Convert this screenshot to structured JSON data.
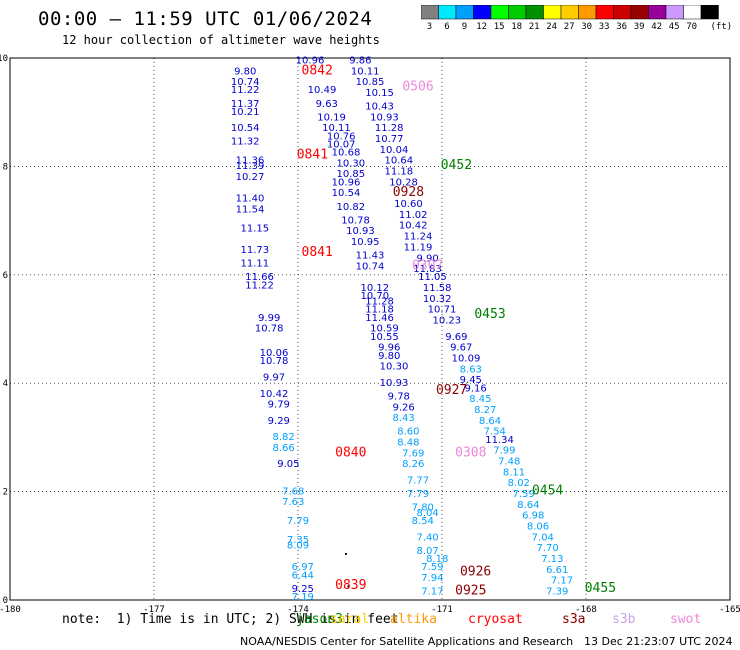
{
  "header": {
    "title": "00:00 – 11:59 UTC 01/06/2024",
    "subtitle": "12 hour collection of altimeter wave heights"
  },
  "legend": {
    "unit": "(ft)",
    "bins": [
      {
        "label": "3",
        "color": "#808080"
      },
      {
        "label": "6",
        "color": "#00e8ff"
      },
      {
        "label": "9",
        "color": "#00a0ff"
      },
      {
        "label": "12",
        "color": "#0000ff"
      },
      {
        "label": "15",
        "color": "#00ff00"
      },
      {
        "label": "18",
        "color": "#00cc00"
      },
      {
        "label": "21",
        "color": "#009000"
      },
      {
        "label": "24",
        "color": "#ffff00"
      },
      {
        "label": "27",
        "color": "#ffcc00"
      },
      {
        "label": "30",
        "color": "#ff9900"
      },
      {
        "label": "33",
        "color": "#ff0000"
      },
      {
        "label": "36",
        "color": "#cc0000"
      },
      {
        "label": "39",
        "color": "#990000"
      },
      {
        "label": "42",
        "color": "#990099"
      },
      {
        "label": "45",
        "color": "#cc99ff"
      },
      {
        "label": "70",
        "color": "#ffffff"
      },
      {
        "label": "",
        "color": "#000000"
      }
    ]
  },
  "map": {
    "lon_ticks": [
      "-180",
      "-177",
      "-174",
      "-171",
      "-168",
      "-165"
    ],
    "lat_ticks": [
      "0",
      "2",
      "4",
      "6",
      "8",
      "10"
    ],
    "lon_range": [
      -180,
      -165
    ],
    "lat_range": [
      0,
      10
    ]
  },
  "tracks": [
    {
      "time": "0842",
      "lon": -173.6,
      "lat": 9.7,
      "color": "#ff0000"
    },
    {
      "time": "0841",
      "lon": -173.7,
      "lat": 8.15,
      "color": "#ff0000"
    },
    {
      "time": "0841",
      "lon": -173.6,
      "lat": 6.35,
      "color": "#ff0000"
    },
    {
      "time": "0840",
      "lon": -172.9,
      "lat": 2.65,
      "color": "#ff0000"
    },
    {
      "time": "0839",
      "lon": -172.9,
      "lat": 0.2,
      "color": "#ff0000"
    },
    {
      "time": "0506",
      "lon": -171.5,
      "lat": 9.4,
      "color": "#ee88dd"
    },
    {
      "time": "0452",
      "lon": -170.7,
      "lat": 7.95,
      "color": "#008000"
    },
    {
      "time": "0928",
      "lon": -171.7,
      "lat": 7.45,
      "color": "#8b0000"
    },
    {
      "time": "0307",
      "lon": -171.3,
      "lat": 6.1,
      "color": "#ee88dd"
    },
    {
      "time": "0453",
      "lon": -170.0,
      "lat": 5.2,
      "color": "#008000"
    },
    {
      "time": "0927",
      "lon": -170.8,
      "lat": 3.8,
      "color": "#8b0000"
    },
    {
      "time": "0308",
      "lon": -170.4,
      "lat": 2.65,
      "color": "#ee88dd"
    },
    {
      "time": "0454",
      "lon": -168.8,
      "lat": 1.95,
      "color": "#008000"
    },
    {
      "time": "0926",
      "lon": -170.3,
      "lat": 0.45,
      "color": "#8b0000"
    },
    {
      "time": "0925",
      "lon": -170.4,
      "lat": 0.1,
      "color": "#8b0000"
    },
    {
      "time": "0455",
      "lon": -167.7,
      "lat": 0.15,
      "color": "#008000"
    }
  ],
  "readings": [
    {
      "v": "10.96",
      "lon": -173.75,
      "lat": 9.9,
      "c": "#0000cc"
    },
    {
      "v": "9.86",
      "lon": -172.7,
      "lat": 9.9,
      "c": "#0000cc"
    },
    {
      "v": "9.80",
      "lon": -175.1,
      "lat": 9.7,
      "c": "#0000cc"
    },
    {
      "v": "10.11",
      "lon": -172.6,
      "lat": 9.7,
      "c": "#0000cc"
    },
    {
      "v": "10.85",
      "lon": -172.5,
      "lat": 9.5,
      "c": "#0000cc"
    },
    {
      "v": "10.74",
      "lon": -175.1,
      "lat": 9.5,
      "c": "#0000cc"
    },
    {
      "v": "11.22",
      "lon": -175.1,
      "lat": 9.35,
      "c": "#0000cc"
    },
    {
      "v": "10.49",
      "lon": -173.5,
      "lat": 9.35,
      "c": "#0000cc"
    },
    {
      "v": "10.15",
      "lon": -172.3,
      "lat": 9.3,
      "c": "#0000cc"
    },
    {
      "v": "11.37",
      "lon": -175.1,
      "lat": 9.1,
      "c": "#0000cc"
    },
    {
      "v": "9.63",
      "lon": -173.4,
      "lat": 9.1,
      "c": "#0000cc"
    },
    {
      "v": "10.43",
      "lon": -172.3,
      "lat": 9.05,
      "c": "#0000cc"
    },
    {
      "v": "10.21",
      "lon": -175.1,
      "lat": 8.95,
      "c": "#0000cc"
    },
    {
      "v": "10.19",
      "lon": -173.3,
      "lat": 8.85,
      "c": "#0000cc"
    },
    {
      "v": "10.93",
      "lon": -172.2,
      "lat": 8.85,
      "c": "#0000cc"
    },
    {
      "v": "10.54",
      "lon": -175.1,
      "lat": 8.65,
      "c": "#0000cc"
    },
    {
      "v": "10.11",
      "lon": -173.2,
      "lat": 8.65,
      "c": "#0000cc"
    },
    {
      "v": "11.28",
      "lon": -172.1,
      "lat": 8.65,
      "c": "#0000cc"
    },
    {
      "v": "11.32",
      "lon": -175.1,
      "lat": 8.4,
      "c": "#0000cc"
    },
    {
      "v": "10.76",
      "lon": -173.1,
      "lat": 8.5,
      "c": "#0000cc"
    },
    {
      "v": "10.77",
      "lon": -172.1,
      "lat": 8.45,
      "c": "#0000cc"
    },
    {
      "v": "10.07",
      "lon": -173.1,
      "lat": 8.35,
      "c": "#0000cc"
    },
    {
      "v": "10.04",
      "lon": -172.0,
      "lat": 8.25,
      "c": "#0000cc"
    },
    {
      "v": "10.68",
      "lon": -173.0,
      "lat": 8.2,
      "c": "#0000cc"
    },
    {
      "v": "11.36",
      "lon": -175.0,
      "lat": 8.05,
      "c": "#0000cc"
    },
    {
      "v": "10.64",
      "lon": -171.9,
      "lat": 8.05,
      "c": "#0000cc"
    },
    {
      "v": "11.39",
      "lon": -175.0,
      "lat": 7.95,
      "c": "#0000cc"
    },
    {
      "v": "10.30",
      "lon": -172.9,
      "lat": 8.0,
      "c": "#0000cc"
    },
    {
      "v": "11.18",
      "lon": -171.9,
      "lat": 7.85,
      "c": "#0000cc"
    },
    {
      "v": "10.27",
      "lon": -175.0,
      "lat": 7.75,
      "c": "#0000cc"
    },
    {
      "v": "10.85",
      "lon": -172.9,
      "lat": 7.8,
      "c": "#0000cc"
    },
    {
      "v": "10.28",
      "lon": -171.8,
      "lat": 7.65,
      "c": "#0000cc"
    },
    {
      "v": "10.96",
      "lon": -173.0,
      "lat": 7.65,
      "c": "#0000cc"
    },
    {
      "v": "11.40",
      "lon": -175.0,
      "lat": 7.35,
      "c": "#0000cc"
    },
    {
      "v": "10.54",
      "lon": -173.0,
      "lat": 7.45,
      "c": "#0000cc"
    },
    {
      "v": "10.60",
      "lon": -171.7,
      "lat": 7.25,
      "c": "#0000cc"
    },
    {
      "v": "11.54",
      "lon": -175.0,
      "lat": 7.15,
      "c": "#0000cc"
    },
    {
      "v": "10.82",
      "lon": -172.9,
      "lat": 7.2,
      "c": "#0000cc"
    },
    {
      "v": "11.02",
      "lon": -171.6,
      "lat": 7.05,
      "c": "#0000cc"
    },
    {
      "v": "10.78",
      "lon": -172.8,
      "lat": 6.95,
      "c": "#0000cc"
    },
    {
      "v": "10.42",
      "lon": -171.6,
      "lat": 6.85,
      "c": "#0000cc"
    },
    {
      "v": "11.15",
      "lon": -174.9,
      "lat": 6.8,
      "c": "#0000cc"
    },
    {
      "v": "10.93",
      "lon": -172.7,
      "lat": 6.75,
      "c": "#0000cc"
    },
    {
      "v": "11.24",
      "lon": -171.5,
      "lat": 6.65,
      "c": "#0000cc"
    },
    {
      "v": "10.95",
      "lon": -172.6,
      "lat": 6.55,
      "c": "#0000cc"
    },
    {
      "v": "11.19",
      "lon": -171.5,
      "lat": 6.45,
      "c": "#0000cc"
    },
    {
      "v": "11.73",
      "lon": -174.9,
      "lat": 6.4,
      "c": "#0000cc"
    },
    {
      "v": "11.43",
      "lon": -172.5,
      "lat": 6.3,
      "c": "#0000cc"
    },
    {
      "v": "9.90",
      "lon": -171.3,
      "lat": 6.25,
      "c": "#0000cc"
    },
    {
      "v": "11.11",
      "lon": -174.9,
      "lat": 6.15,
      "c": "#0000cc"
    },
    {
      "v": "10.74",
      "lon": -172.5,
      "lat": 6.1,
      "c": "#0000cc"
    },
    {
      "v": "11.83",
      "lon": -171.3,
      "lat": 6.05,
      "c": "#0000cc"
    },
    {
      "v": "11.66",
      "lon": -174.8,
      "lat": 5.9,
      "c": "#0000cc"
    },
    {
      "v": "11.05",
      "lon": -171.2,
      "lat": 5.9,
      "c": "#0000cc"
    },
    {
      "v": "11.22",
      "lon": -174.8,
      "lat": 5.75,
      "c": "#0000cc"
    },
    {
      "v": "10.12",
      "lon": -172.4,
      "lat": 5.7,
      "c": "#0000cc"
    },
    {
      "v": "11.58",
      "lon": -171.1,
      "lat": 5.7,
      "c": "#0000cc"
    },
    {
      "v": "10.70",
      "lon": -172.4,
      "lat": 5.55,
      "c": "#0000cc"
    },
    {
      "v": "10.32",
      "lon": -171.1,
      "lat": 5.5,
      "c": "#0000cc"
    },
    {
      "v": "11.28",
      "lon": -172.3,
      "lat": 5.45,
      "c": "#0000cc"
    },
    {
      "v": "11.18",
      "lon": -172.3,
      "lat": 5.3,
      "c": "#0000cc"
    },
    {
      "v": "10.71",
      "lon": -171.0,
      "lat": 5.3,
      "c": "#0000cc"
    },
    {
      "v": "9.99",
      "lon": -174.6,
      "lat": 5.15,
      "c": "#0000cc"
    },
    {
      "v": "11.46",
      "lon": -172.3,
      "lat": 5.15,
      "c": "#0000cc"
    },
    {
      "v": "10.23",
      "lon": -170.9,
      "lat": 5.1,
      "c": "#0000cc"
    },
    {
      "v": "10.78",
      "lon": -174.6,
      "lat": 4.95,
      "c": "#0000cc"
    },
    {
      "v": "10.59",
      "lon": -172.2,
      "lat": 4.95,
      "c": "#0000cc"
    },
    {
      "v": "10.55",
      "lon": -172.2,
      "lat": 4.8,
      "c": "#0000cc"
    },
    {
      "v": "9.69",
      "lon": -170.7,
      "lat": 4.8,
      "c": "#0000cc"
    },
    {
      "v": "9.96",
      "lon": -172.1,
      "lat": 4.6,
      "c": "#0000cc"
    },
    {
      "v": "9.67",
      "lon": -170.6,
      "lat": 4.6,
      "c": "#0000cc"
    },
    {
      "v": "10.09",
      "lon": -170.5,
      "lat": 4.4,
      "c": "#0000cc"
    },
    {
      "v": "10.06",
      "lon": -174.5,
      "lat": 4.5,
      "c": "#0000cc"
    },
    {
      "v": "9.80",
      "lon": -172.1,
      "lat": 4.45,
      "c": "#0000cc"
    },
    {
      "v": "10.78",
      "lon": -174.5,
      "lat": 4.35,
      "c": "#0000cc"
    },
    {
      "v": "10.30",
      "lon": -172.0,
      "lat": 4.25,
      "c": "#0000cc"
    },
    {
      "v": "8.63",
      "lon": -170.4,
      "lat": 4.2,
      "c": "#00a0ff"
    },
    {
      "v": "9.97",
      "lon": -174.5,
      "lat": 4.05,
      "c": "#0000cc"
    },
    {
      "v": "9.45",
      "lon": -170.4,
      "lat": 4.0,
      "c": "#0000cc"
    },
    {
      "v": "10.93",
      "lon": -172.0,
      "lat": 3.95,
      "c": "#0000cc"
    },
    {
      "v": "9.16",
      "lon": -170.3,
      "lat": 3.85,
      "c": "#0000cc"
    },
    {
      "v": "10.42",
      "lon": -174.5,
      "lat": 3.75,
      "c": "#0000cc"
    },
    {
      "v": "9.78",
      "lon": -171.9,
      "lat": 3.7,
      "c": "#0000cc"
    },
    {
      "v": "8.45",
      "lon": -170.2,
      "lat": 3.65,
      "c": "#00a0ff"
    },
    {
      "v": "9.79",
      "lon": -174.4,
      "lat": 3.55,
      "c": "#0000cc"
    },
    {
      "v": "9.26",
      "lon": -171.8,
      "lat": 3.5,
      "c": "#0000cc"
    },
    {
      "v": "8.27",
      "lon": -170.1,
      "lat": 3.45,
      "c": "#00a0ff"
    },
    {
      "v": "9.29",
      "lon": -174.4,
      "lat": 3.25,
      "c": "#0000cc"
    },
    {
      "v": "8.43",
      "lon": -171.8,
      "lat": 3.3,
      "c": "#00a0ff"
    },
    {
      "v": "8.64",
      "lon": -170.0,
      "lat": 3.25,
      "c": "#00a0ff"
    },
    {
      "v": "8.60",
      "lon": -171.7,
      "lat": 3.05,
      "c": "#00a0ff"
    },
    {
      "v": "7.54",
      "lon": -169.9,
      "lat": 3.05,
      "c": "#00a0ff"
    },
    {
      "v": "8.82",
      "lon": -174.3,
      "lat": 2.95,
      "c": "#00a0ff"
    },
    {
      "v": "11.34",
      "lon": -169.8,
      "lat": 2.9,
      "c": "#0000cc"
    },
    {
      "v": "8.66",
      "lon": -174.3,
      "lat": 2.75,
      "c": "#00a0ff"
    },
    {
      "v": "8.48",
      "lon": -171.7,
      "lat": 2.85,
      "c": "#00a0ff"
    },
    {
      "v": "7.99",
      "lon": -169.7,
      "lat": 2.7,
      "c": "#00a0ff"
    },
    {
      "v": "7.69",
      "lon": -171.6,
      "lat": 2.65,
      "c": "#00a0ff"
    },
    {
      "v": "9.05",
      "lon": -174.2,
      "lat": 2.45,
      "c": "#0000cc"
    },
    {
      "v": "8.26",
      "lon": -171.6,
      "lat": 2.45,
      "c": "#00a0ff"
    },
    {
      "v": "7.48",
      "lon": -169.6,
      "lat": 2.5,
      "c": "#00a0ff"
    },
    {
      "v": "8.11",
      "lon": -169.5,
      "lat": 2.3,
      "c": "#00a0ff"
    },
    {
      "v": "7.77",
      "lon": -171.5,
      "lat": 2.15,
      "c": "#00a0ff"
    },
    {
      "v": "8.02",
      "lon": -169.4,
      "lat": 2.1,
      "c": "#00a0ff"
    },
    {
      "v": "7.68",
      "lon": -174.1,
      "lat": 1.95,
      "c": "#00a0ff"
    },
    {
      "v": "7.79",
      "lon": -171.5,
      "lat": 1.9,
      "c": "#00a0ff"
    },
    {
      "v": "7.59",
      "lon": -169.3,
      "lat": 1.9,
      "c": "#00a0ff"
    },
    {
      "v": "7.63",
      "lon": -174.1,
      "lat": 1.75,
      "c": "#00a0ff"
    },
    {
      "v": "7.80",
      "lon": -171.4,
      "lat": 1.65,
      "c": "#00a0ff"
    },
    {
      "v": "8.64",
      "lon": -169.2,
      "lat": 1.7,
      "c": "#00a0ff"
    },
    {
      "v": "8.04",
      "lon": -171.3,
      "lat": 1.55,
      "c": "#00a0ff"
    },
    {
      "v": "6.98",
      "lon": -169.1,
      "lat": 1.5,
      "c": "#00a0ff"
    },
    {
      "v": "7.79",
      "lon": -174.0,
      "lat": 1.4,
      "c": "#00a0ff"
    },
    {
      "v": "8.54",
      "lon": -171.4,
      "lat": 1.4,
      "c": "#00a0ff"
    },
    {
      "v": "8.06",
      "lon": -169.0,
      "lat": 1.3,
      "c": "#00a0ff"
    },
    {
      "v": "7.35",
      "lon": -174.0,
      "lat": 1.05,
      "c": "#00a0ff"
    },
    {
      "v": "7.40",
      "lon": -171.3,
      "lat": 1.1,
      "c": "#00a0ff"
    },
    {
      "v": "7.04",
      "lon": -168.9,
      "lat": 1.1,
      "c": "#00a0ff"
    },
    {
      "v": "8.09",
      "lon": -174.0,
      "lat": 0.95,
      "c": "#00a0ff"
    },
    {
      "v": "8.07",
      "lon": -171.3,
      "lat": 0.85,
      "c": "#00a0ff"
    },
    {
      "v": "7.70",
      "lon": -168.8,
      "lat": 0.9,
      "c": "#00a0ff"
    },
    {
      "v": "8.18",
      "lon": -171.1,
      "lat": 0.7,
      "c": "#00a0ff"
    },
    {
      "v": "7.13",
      "lon": -168.7,
      "lat": 0.7,
      "c": "#00a0ff"
    },
    {
      "v": "6.97",
      "lon": -173.9,
      "lat": 0.55,
      "c": "#00a0ff"
    },
    {
      "v": "7.59",
      "lon": -171.2,
      "lat": 0.55,
      "c": "#00a0ff"
    },
    {
      "v": "6.61",
      "lon": -168.6,
      "lat": 0.5,
      "c": "#00a0ff"
    },
    {
      "v": "6.44",
      "lon": -173.9,
      "lat": 0.4,
      "c": "#00a0ff"
    },
    {
      "v": "7.94",
      "lon": -171.2,
      "lat": 0.35,
      "c": "#00a0ff"
    },
    {
      "v": "7.17",
      "lon": -168.5,
      "lat": 0.3,
      "c": "#00a0ff"
    },
    {
      "v": "9.25",
      "lon": -173.9,
      "lat": 0.15,
      "c": "#0000cc"
    },
    {
      "v": "7.17",
      "lon": -171.2,
      "lat": 0.1,
      "c": "#00a0ff"
    },
    {
      "v": "7.39",
      "lon": -168.6,
      "lat": 0.1,
      "c": "#00a0ff"
    },
    {
      "v": "7.19",
      "lon": -173.9,
      "lat": 0.0,
      "c": "#00a0ff"
    }
  ],
  "footer": {
    "note": "note:  1) Time is in UTC; 2) SWH is in feet",
    "satellites": [
      {
        "name": "jason3",
        "color": "#008000"
      },
      {
        "name": "saral",
        "color": "#ffcc00"
      },
      {
        "name": "altika",
        "color": "#ff9900"
      },
      {
        "name": "cryosat",
        "color": "#ff0000"
      },
      {
        "name": "s3a",
        "color": "#8b0000"
      },
      {
        "name": "s3b",
        "color": "#c8a2e8"
      },
      {
        "name": "swot",
        "color": "#ee88dd"
      }
    ],
    "credit": "NOAA/NESDIS Center for Satellite Applications and Research",
    "generated": "13 Dec 21:23:07 UTC 2024"
  }
}
